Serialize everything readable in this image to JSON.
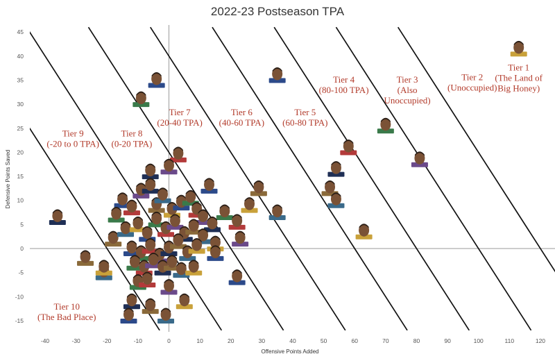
{
  "chart_data": {
    "type": "scatter",
    "title": "2022-23 Postseason TPA",
    "xlabel": "Offensive Points Added",
    "ylabel": "Defensive Points Saved",
    "xlim": [
      -45,
      125
    ],
    "ylim": [
      -17,
      46
    ],
    "x_ticks": [
      -40,
      -30,
      -20,
      -10,
      0,
      10,
      20,
      30,
      40,
      50,
      60,
      70,
      80,
      90,
      100,
      110,
      120
    ],
    "y_ticks": [
      -15,
      -10,
      -5,
      0,
      5,
      10,
      15,
      20,
      25,
      30,
      35,
      40,
      45
    ],
    "grid": false,
    "tier_boundaries_tpa": [
      -20,
      0,
      20,
      40,
      60,
      80,
      100,
      120
    ],
    "tiers": [
      {
        "lines": [
          "Tier 1",
          "(The Land of",
          "Big Honey)"
        ],
        "x": 113,
        "y": 37
      },
      {
        "lines": [
          "Tier 2",
          "(Unoccupied)"
        ],
        "x": 98,
        "y": 35
      },
      {
        "lines": [
          "Tier 3",
          "(Also",
          "Unoccupied)"
        ],
        "x": 77,
        "y": 34.5
      },
      {
        "lines": [
          "Tier 4",
          "(80-100 TPA)"
        ],
        "x": 56.5,
        "y": 34.5
      },
      {
        "lines": [
          "Tier 5",
          "(60-80 TPA)"
        ],
        "x": 44,
        "y": 27.7
      },
      {
        "lines": [
          "Tier 6",
          "(40-60 TPA)"
        ],
        "x": 23.5,
        "y": 27.7
      },
      {
        "lines": [
          "Tier 7",
          "(20-40 TPA)"
        ],
        "x": 3.5,
        "y": 27.7
      },
      {
        "lines": [
          "Tier 8",
          "(0-20 TPA)"
        ],
        "x": -12,
        "y": 23.3
      },
      {
        "lines": [
          "Tier 9",
          "(-20 to 0 TPA)"
        ],
        "x": -31,
        "y": 23.3
      },
      {
        "lines": [
          "Tier 10",
          "(The Bad Place)"
        ],
        "x": -33,
        "y": -12.7
      }
    ],
    "points": [
      {
        "x": 113,
        "y": 41.5
      },
      {
        "x": 35,
        "y": 36
      },
      {
        "x": 70,
        "y": 25.5
      },
      {
        "x": 58,
        "y": 21
      },
      {
        "x": 81,
        "y": 18.5
      },
      {
        "x": 54,
        "y": 16.5
      },
      {
        "x": 52,
        "y": 12.5
      },
      {
        "x": 54,
        "y": 10
      },
      {
        "x": 63,
        "y": 3.5
      },
      {
        "x": -4,
        "y": 35
      },
      {
        "x": -9,
        "y": 31
      },
      {
        "x": 3,
        "y": 19.5
      },
      {
        "x": 0,
        "y": 17
      },
      {
        "x": -6,
        "y": 16
      },
      {
        "x": 29,
        "y": 12.5
      },
      {
        "x": 35,
        "y": 7.5
      },
      {
        "x": 26,
        "y": 9
      },
      {
        "x": 13,
        "y": 13
      },
      {
        "x": 18,
        "y": 7.5
      },
      {
        "x": 22,
        "y": 5.5
      },
      {
        "x": 23,
        "y": 2
      },
      {
        "x": -36,
        "y": 6.5
      },
      {
        "x": -27,
        "y": -2
      },
      {
        "x": -21,
        "y": -5
      },
      {
        "x": -21,
        "y": -4
      },
      {
        "x": -15,
        "y": 10
      },
      {
        "x": -17,
        "y": 7
      },
      {
        "x": -12,
        "y": 8.5
      },
      {
        "x": -9,
        "y": 12
      },
      {
        "x": -6,
        "y": 13
      },
      {
        "x": -4,
        "y": 9
      },
      {
        "x": -2,
        "y": 11
      },
      {
        "x": 1,
        "y": 8
      },
      {
        "x": 4,
        "y": 9.5
      },
      {
        "x": 7,
        "y": 10.5
      },
      {
        "x": 9,
        "y": 8
      },
      {
        "x": 11,
        "y": 6.5
      },
      {
        "x": 14,
        "y": 5
      },
      {
        "x": -18,
        "y": 2
      },
      {
        "x": -14,
        "y": 4
      },
      {
        "x": -10,
        "y": 5
      },
      {
        "x": -7,
        "y": 3
      },
      {
        "x": -4,
        "y": 6
      },
      {
        "x": -1,
        "y": 4
      },
      {
        "x": 2,
        "y": 5.5
      },
      {
        "x": 5,
        "y": 3
      },
      {
        "x": 8,
        "y": 4.5
      },
      {
        "x": 11,
        "y": 2.5
      },
      {
        "x": 15,
        "y": 1
      },
      {
        "x": -12,
        "y": 0
      },
      {
        "x": -9,
        "y": -1
      },
      {
        "x": -6,
        "y": 0.5
      },
      {
        "x": -3,
        "y": -1.5
      },
      {
        "x": 0,
        "y": 0
      },
      {
        "x": 3,
        "y": 1.5
      },
      {
        "x": 6,
        "y": -1
      },
      {
        "x": 9,
        "y": 0.5
      },
      {
        "x": 15,
        "y": -1
      },
      {
        "x": -11,
        "y": -3
      },
      {
        "x": -8,
        "y": -4
      },
      {
        "x": -5,
        "y": -2.5
      },
      {
        "x": -2,
        "y": -4
      },
      {
        "x": 1,
        "y": -3
      },
      {
        "x": 4,
        "y": -4.5
      },
      {
        "x": 8,
        "y": -4
      },
      {
        "x": 22,
        "y": -6
      },
      {
        "x": -10,
        "y": -7
      },
      {
        "x": -7,
        "y": -6.5
      },
      {
        "x": 0,
        "y": -8
      },
      {
        "x": -12,
        "y": -11
      },
      {
        "x": -6,
        "y": -12
      },
      {
        "x": -1,
        "y": -14
      },
      {
        "x": 5,
        "y": -11
      },
      {
        "x": -13,
        "y": -14
      }
    ]
  }
}
